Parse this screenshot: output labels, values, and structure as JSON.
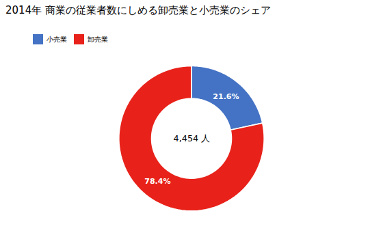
{
  "chart_data": {
    "type": "pie",
    "title": "2014年 商業の従業者数にしめる卸売業と小売業のシェア",
    "categories": [
      "小売業",
      "卸売業"
    ],
    "values": [
      21.6,
      78.4
    ],
    "value_labels": [
      "21.6%",
      "78.4%"
    ],
    "colors": [
      "#4472C4",
      "#E8221A"
    ],
    "data_labels": true,
    "annotations": [
      "4,454 人"
    ],
    "legend": "top"
  }
}
